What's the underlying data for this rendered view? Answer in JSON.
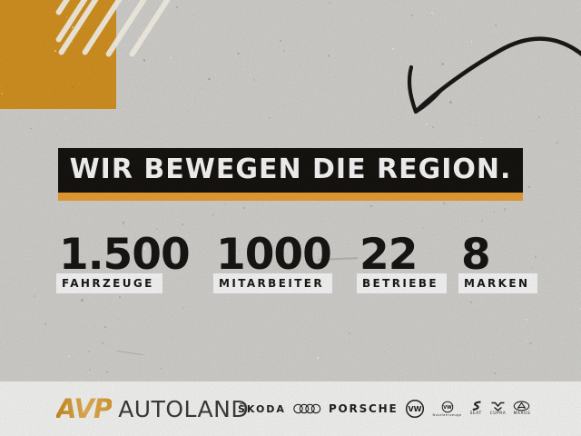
{
  "hero": {
    "headline": "WIR BEWEGEN DIE REGION."
  },
  "stats": [
    {
      "value": "1.500",
      "label": "FAHRZEUGE"
    },
    {
      "value": "1000",
      "label": "MITARBEITER"
    },
    {
      "value": "22",
      "label": "BETRIEBE"
    },
    {
      "value": "8",
      "label": "MARKEN"
    }
  ],
  "footer": {
    "company_logo": {
      "avp": "AVP",
      "autoland": "AUTOLAND"
    },
    "brands": {
      "skoda": "ŠKODA",
      "audi": "audi-four-rings",
      "porsche": "PORSCHE",
      "vw": "VW",
      "vw_nutzfahrzeuge_caption": "Nutzfahrzeuge",
      "seat_caption": "SEAT",
      "cupra_caption": "CUPRA",
      "maxus_caption": "MAXUS"
    }
  },
  "decor": {
    "arrow": "hand-drawn-curved-arrow-pointing-down-left",
    "stripes": "white-diagonal-stripes",
    "square": "orange-square"
  },
  "colors": {
    "orange": "#D99623",
    "underline-orange": "#F0A234",
    "banner-black": "#171411",
    "concrete": "#D8D7D4",
    "footer-bg": "#FCFCFA",
    "ink": "#181715",
    "avp-gold": "#DFA02D",
    "logo-gray": "#3D3F3F"
  }
}
